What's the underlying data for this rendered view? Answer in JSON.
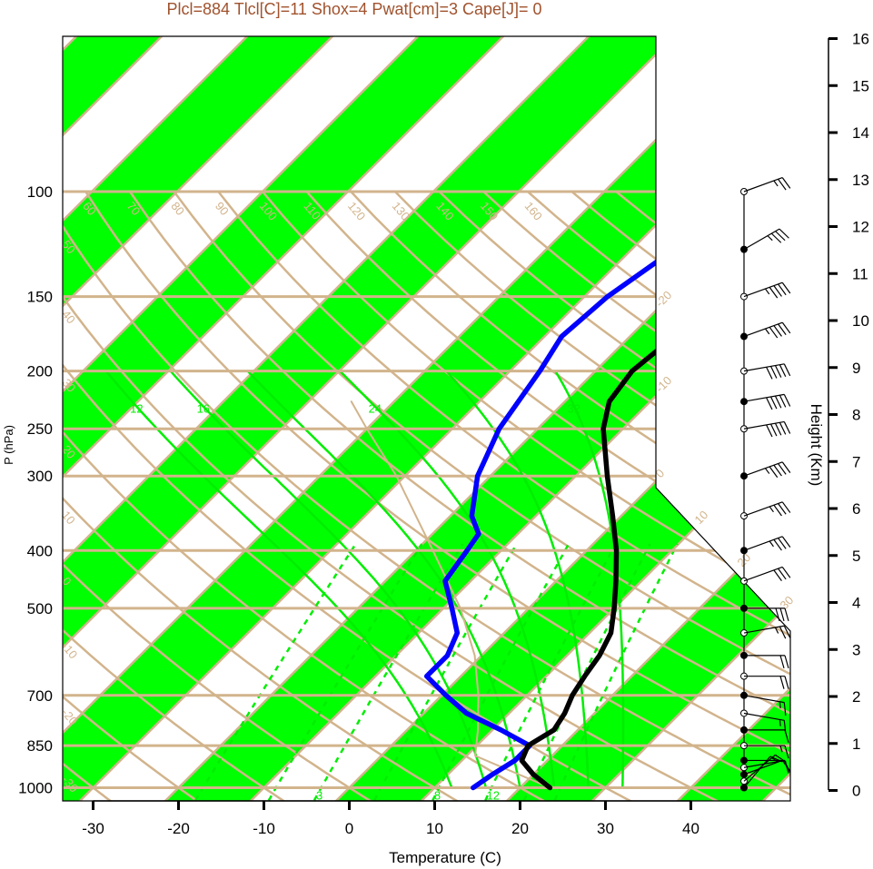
{
  "title": "Plcl=884 Tlcl[C]=11 Shox=4 Pwat[cm]=3 Cape[J]= 0",
  "colors": {
    "title": "#a0522d",
    "band": "#00ff00",
    "isotherm": "#d2b48c",
    "isobar": "#d2b48c",
    "dry_adiabat": "#d2b48c",
    "moist_adiabat": "#00ee00",
    "mixing_ratio": "#00ee00",
    "temperature": "#000000",
    "dewpoint": "#0000ff",
    "parcel": "#d2b48c",
    "wind": "#000000"
  },
  "chart_data": {
    "type": "skew-t log-p",
    "xlabel": "Temperature (C)",
    "ylabel": "P (hPa)",
    "height_axis_label": "Height (Km)",
    "x_ticks": [
      -30,
      -20,
      -10,
      0,
      10,
      20,
      30,
      40
    ],
    "x_range": [
      -33.3,
      51.7
    ],
    "pressure_range": [
      1050,
      100
    ],
    "pressure_ticks": [
      1000,
      850,
      700,
      500,
      400,
      300,
      250,
      200,
      150,
      100
    ],
    "height_ticks_km": [
      0,
      1,
      2,
      3,
      4,
      5,
      6,
      7,
      8,
      9,
      10,
      11,
      12,
      13,
      14,
      15,
      16
    ],
    "isotherm_labels": [
      -20,
      -10,
      0,
      10,
      20,
      30
    ],
    "dry_adiabat_labels": [
      -30,
      -20,
      -10,
      0,
      10,
      20,
      30,
      40,
      50,
      60,
      70,
      80,
      90,
      100,
      110,
      120,
      130,
      140,
      150,
      160
    ],
    "moist_adiabat_labels": [
      12,
      16,
      24,
      32
    ],
    "mixing_ratio_labels": [
      3,
      8,
      12
    ],
    "series": [
      {
        "name": "Temperature",
        "points": [
          [
            1000,
            23.5
          ],
          [
            950,
            20
          ],
          [
            900,
            17
          ],
          [
            850,
            16
          ],
          [
            800,
            17.2
          ],
          [
            750,
            16.5
          ],
          [
            700,
            15.3
          ],
          [
            650,
            14.5
          ],
          [
            600,
            13.8
          ],
          [
            550,
            12.5
          ],
          [
            500,
            10
          ],
          [
            450,
            7
          ],
          [
            400,
            3.5
          ],
          [
            350,
            -1
          ],
          [
            300,
            -6.3
          ],
          [
            250,
            -12.3
          ],
          [
            225,
            -14.8
          ],
          [
            200,
            -15.7
          ],
          [
            175,
            -14.8
          ],
          [
            150,
            -11.5
          ],
          [
            125,
            -5.5
          ],
          [
            110,
            2.8
          ],
          [
            100,
            10.5
          ]
        ]
      },
      {
        "name": "Dewpoint",
        "points": [
          [
            1000,
            14.5
          ],
          [
            950,
            15.2
          ],
          [
            900,
            16.2
          ],
          [
            850,
            16.2
          ],
          [
            800,
            11
          ],
          [
            750,
            5
          ],
          [
            700,
            0.5
          ],
          [
            650,
            -4
          ],
          [
            600,
            -4
          ],
          [
            550,
            -5.5
          ],
          [
            500,
            -9
          ],
          [
            450,
            -13
          ],
          [
            400,
            -14
          ],
          [
            375,
            -14.6
          ],
          [
            350,
            -17.5
          ],
          [
            300,
            -21.5
          ],
          [
            250,
            -24.5
          ],
          [
            200,
            -26.5
          ],
          [
            175,
            -28
          ],
          [
            150,
            -27.3
          ],
          [
            125,
            -25
          ],
          [
            110,
            -26
          ],
          [
            100,
            -24
          ]
        ]
      },
      {
        "name": "Parcel",
        "points": [
          [
            1000,
            23.5
          ],
          [
            884,
            11
          ],
          [
            800,
            8.3
          ],
          [
            700,
            4.3
          ],
          [
            600,
            -0.8
          ],
          [
            500,
            -8
          ],
          [
            400,
            -18
          ],
          [
            300,
            -31
          ],
          [
            250,
            -40
          ],
          [
            225,
            -45
          ]
        ]
      }
    ],
    "wind_barbs": [
      {
        "p": 1000,
        "dir": 220,
        "kt": 10
      },
      {
        "p": 975,
        "dir": 230,
        "kt": 15
      },
      {
        "p": 950,
        "dir": 250,
        "kt": 10
      },
      {
        "p": 925,
        "dir": 260,
        "kt": 10
      },
      {
        "p": 900,
        "dir": 270,
        "kt": 10
      },
      {
        "p": 850,
        "dir": 270,
        "kt": 15
      },
      {
        "p": 800,
        "dir": 270,
        "kt": 10
      },
      {
        "p": 750,
        "dir": 280,
        "kt": 15
      },
      {
        "p": 700,
        "dir": 280,
        "kt": 15
      },
      {
        "p": 650,
        "dir": 270,
        "kt": 20
      },
      {
        "p": 600,
        "dir": 270,
        "kt": 20
      },
      {
        "p": 550,
        "dir": 260,
        "kt": 25
      },
      {
        "p": 500,
        "dir": 270,
        "kt": 30
      },
      {
        "p": 450,
        "dir": 250,
        "kt": 30
      },
      {
        "p": 400,
        "dir": 250,
        "kt": 35
      },
      {
        "p": 350,
        "dir": 250,
        "kt": 35
      },
      {
        "p": 300,
        "dir": 250,
        "kt": 45
      },
      {
        "p": 250,
        "dir": 260,
        "kt": 50
      },
      {
        "p": 225,
        "dir": 260,
        "kt": 50
      },
      {
        "p": 200,
        "dir": 260,
        "kt": 50
      },
      {
        "p": 175,
        "dir": 250,
        "kt": 45
      },
      {
        "p": 150,
        "dir": 250,
        "kt": 45
      },
      {
        "p": 125,
        "dir": 240,
        "kt": 35
      },
      {
        "p": 100,
        "dir": 250,
        "kt": 25
      }
    ]
  }
}
